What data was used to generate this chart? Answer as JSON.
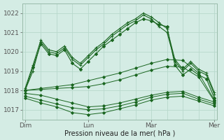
{
  "bg_color": "#d4ece4",
  "grid_color": "#b8d8cc",
  "line_color": "#1a6620",
  "marker_color": "#1a6620",
  "xlabel": "Pression niveau de la mer( hPa )",
  "ylim": [
    1016.5,
    1022.5
  ],
  "xlim": [
    -1,
    73
  ],
  "yticks": [
    1017,
    1018,
    1019,
    1020,
    1021,
    1022
  ],
  "xtick_labels": [
    "Dim",
    "Lun",
    "Mar",
    "Mer"
  ],
  "xtick_positions": [
    0,
    24,
    48,
    72
  ],
  "vgrid_positions": [
    0,
    6,
    12,
    18,
    24,
    30,
    36,
    42,
    48,
    54,
    60,
    66,
    72
  ],
  "series": [
    {
      "x": [
        0,
        3,
        6,
        9,
        12,
        15,
        18,
        21,
        24,
        27,
        30,
        33,
        36,
        39,
        42,
        45,
        48,
        51,
        54,
        57,
        60,
        63,
        66,
        69,
        72
      ],
      "y": [
        1018.0,
        1019.2,
        1020.4,
        1019.9,
        1019.8,
        1020.1,
        1019.4,
        1019.1,
        1019.5,
        1019.9,
        1020.3,
        1020.6,
        1020.9,
        1021.2,
        1021.5,
        1021.7,
        1021.6,
        1021.4,
        1021.3,
        1019.3,
        1018.8,
        1019.1,
        1018.8,
        1018.6,
        1017.6
      ],
      "marker": "D",
      "ms": 2.2,
      "lw": 0.8
    },
    {
      "x": [
        0,
        3,
        6,
        9,
        12,
        15,
        18,
        21,
        24,
        27,
        30,
        33,
        36,
        39,
        42,
        45,
        48,
        51,
        54,
        57,
        60,
        63,
        66,
        69,
        72
      ],
      "y": [
        1018.0,
        1019.0,
        1020.5,
        1020.0,
        1019.9,
        1020.2,
        1019.6,
        1019.3,
        1019.7,
        1020.1,
        1020.4,
        1020.8,
        1021.1,
        1021.4,
        1021.6,
        1021.9,
        1021.7,
        1021.3,
        1021.0,
        1019.5,
        1019.0,
        1019.4,
        1019.0,
        1018.8,
        1017.8
      ],
      "marker": "+",
      "ms": 3.5,
      "lw": 0.8
    },
    {
      "x": [
        0,
        3,
        6,
        9,
        12,
        15,
        18,
        21,
        24,
        27,
        30,
        33,
        36,
        39,
        42,
        45,
        48,
        51,
        54,
        57,
        60,
        63,
        66,
        69,
        72
      ],
      "y": [
        1018.1,
        1019.3,
        1020.6,
        1020.1,
        1020.0,
        1020.3,
        1019.7,
        1019.4,
        1019.8,
        1020.2,
        1020.5,
        1020.9,
        1021.2,
        1021.5,
        1021.7,
        1022.0,
        1021.8,
        1021.5,
        1021.2,
        1019.6,
        1019.1,
        1019.5,
        1019.1,
        1018.9,
        1017.9
      ],
      "marker": "+",
      "ms": 3.5,
      "lw": 0.8
    },
    {
      "x": [
        0,
        6,
        12,
        18,
        24,
        30,
        36,
        42,
        48,
        54,
        60,
        66,
        72
      ],
      "y": [
        1018.0,
        1018.1,
        1018.2,
        1018.3,
        1018.5,
        1018.7,
        1018.9,
        1019.15,
        1019.4,
        1019.6,
        1019.55,
        1018.9,
        1017.5
      ],
      "marker": "D",
      "ms": 2.0,
      "lw": 0.7
    },
    {
      "x": [
        0,
        6,
        12,
        18,
        24,
        30,
        36,
        42,
        48,
        54,
        60,
        66,
        72
      ],
      "y": [
        1018.0,
        1018.05,
        1018.1,
        1018.15,
        1018.2,
        1018.35,
        1018.55,
        1018.8,
        1019.05,
        1019.25,
        1019.2,
        1018.7,
        1017.45
      ],
      "marker": "D",
      "ms": 2.0,
      "lw": 0.7
    },
    {
      "x": [
        0,
        6,
        12,
        18,
        24,
        30,
        36,
        42,
        48,
        54,
        60,
        66,
        72
      ],
      "y": [
        1017.85,
        1017.75,
        1017.55,
        1017.35,
        1017.15,
        1017.2,
        1017.35,
        1017.55,
        1017.75,
        1017.9,
        1017.95,
        1017.65,
        1017.4
      ],
      "marker": "D",
      "ms": 2.0,
      "lw": 0.7
    },
    {
      "x": [
        0,
        6,
        12,
        18,
        24,
        30,
        36,
        42,
        48,
        54,
        60,
        66,
        72
      ],
      "y": [
        1017.7,
        1017.5,
        1017.3,
        1017.1,
        1017.0,
        1017.05,
        1017.2,
        1017.4,
        1017.65,
        1017.8,
        1017.85,
        1017.55,
        1017.3
      ],
      "marker": "D",
      "ms": 2.0,
      "lw": 0.7
    },
    {
      "x": [
        0,
        6,
        12,
        18,
        24,
        30,
        36,
        42,
        48,
        54,
        60,
        66,
        72
      ],
      "y": [
        1017.6,
        1017.35,
        1017.15,
        1016.85,
        1016.75,
        1016.85,
        1017.05,
        1017.25,
        1017.5,
        1017.65,
        1017.7,
        1017.45,
        1017.2
      ],
      "marker": "D",
      "ms": 2.0,
      "lw": 0.7
    }
  ]
}
